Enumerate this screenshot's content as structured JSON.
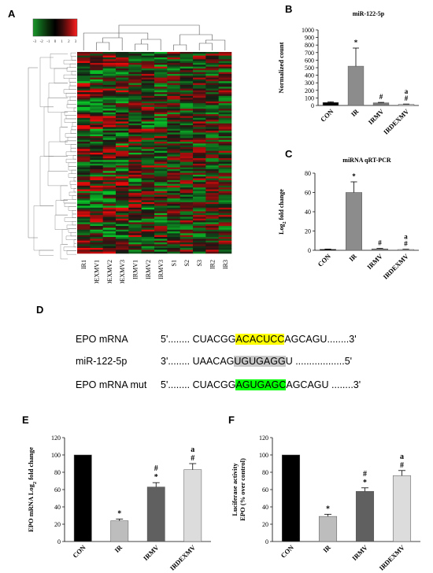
{
  "panels": {
    "A": "A",
    "B": "B",
    "C": "C",
    "D": "D",
    "E": "E",
    "F": "F"
  },
  "heatmap": {
    "colorbar_ticks": [
      "-3",
      "-2",
      "-1",
      "0",
      "1",
      "2",
      "3"
    ],
    "colorbar_colors": [
      "#1a9a2a",
      "#0f5f1a",
      "#0a2a0a",
      "#000000",
      "#3a0a0a",
      "#9a1010",
      "#ff2020"
    ],
    "column_labels": [
      "IR1",
      "DEXMV1",
      "DEXMV2",
      "DEXMV3",
      "IRMV1",
      "IRMV2",
      "IRMV3",
      "S1",
      "S2",
      "S3",
      "IR2",
      "IR3"
    ]
  },
  "chart_data": [
    {
      "id": "B",
      "type": "bar",
      "title": "miR-122-5p",
      "ylabel": "Normalized count",
      "categories": [
        "CON",
        "IR",
        "IRMV",
        "IRDEXMV"
      ],
      "values": [
        40,
        520,
        35,
        15
      ],
      "errors": [
        8,
        240,
        6,
        4
      ],
      "colors": [
        "#000000",
        "#8c8c8c",
        "#7a7a7a",
        "#d8d8d8"
      ],
      "annotations": [
        [],
        [
          "*"
        ],
        [
          "#"
        ],
        [
          "#",
          "a"
        ]
      ],
      "ylim": [
        0,
        1000
      ],
      "yticks": [
        0,
        100,
        200,
        300,
        400,
        500,
        600,
        700,
        800,
        900,
        1000
      ]
    },
    {
      "id": "C",
      "type": "bar",
      "title": "miRNA qRT-PCR",
      "ylabel": "Log2 fold change",
      "categories": [
        "CON",
        "IR",
        "IRMV",
        "IRDEXMV"
      ],
      "values": [
        1,
        60,
        1.5,
        0.8
      ],
      "errors": [
        0.3,
        11,
        0.5,
        0.3
      ],
      "colors": [
        "#000000",
        "#8c8c8c",
        "#7a7a7a",
        "#d8d8d8"
      ],
      "annotations": [
        [],
        [
          "*"
        ],
        [
          "#"
        ],
        [
          "#",
          "a"
        ]
      ],
      "ylim": [
        0,
        80
      ],
      "yticks": [
        0,
        20,
        40,
        60,
        80
      ]
    },
    {
      "id": "E",
      "type": "bar",
      "title": "",
      "ylabel": "EPO mRNA Log2 fold change",
      "categories": [
        "CON",
        "IR",
        "IRMV",
        "IRDEXMV"
      ],
      "values": [
        100,
        24,
        63,
        83
      ],
      "errors": [
        0,
        2,
        5,
        7
      ],
      "colors": [
        "#000000",
        "#bdbdbd",
        "#606060",
        "#dcdcdc"
      ],
      "annotations": [
        [],
        [
          "*"
        ],
        [
          "*",
          "#"
        ],
        [
          "#",
          "a"
        ]
      ],
      "ylim": [
        0,
        120
      ],
      "yticks": [
        0,
        20,
        40,
        60,
        80,
        100,
        120
      ]
    },
    {
      "id": "F",
      "type": "bar",
      "title": "",
      "ylabel": "Luciferase activity EPO (% over control)",
      "categories": [
        "CON",
        "IR",
        "IRMV",
        "IRDEXMV"
      ],
      "values": [
        100,
        29,
        58,
        76
      ],
      "errors": [
        0,
        2.5,
        4,
        6
      ],
      "colors": [
        "#000000",
        "#bdbdbd",
        "#606060",
        "#dcdcdc"
      ],
      "annotations": [
        [],
        [
          "*"
        ],
        [
          "*",
          "#"
        ],
        [
          "#",
          "a"
        ]
      ],
      "ylim": [
        0,
        120
      ],
      "yticks": [
        0,
        20,
        40,
        60,
        80,
        100,
        120
      ]
    }
  ],
  "sequences": [
    {
      "label": "EPO mRNA",
      "prefix": "5'........ CUACGG",
      "highlight": "ACACUCC",
      "suffix": "AGCAGU........3'",
      "hl_class": "hl-yellow"
    },
    {
      "label": "miR-122-5p",
      "prefix": "3'........ UAACAG",
      "highlight": "UGUGAGG",
      "suffix": "U ..................5'",
      "hl_class": "hl-gray"
    },
    {
      "label": "EPO mRNA mut",
      "prefix": "5'........ CUACGG",
      "highlight": "AGUGAGC",
      "suffix": "AGCAGU ........3'",
      "hl_class": "hl-green"
    }
  ]
}
